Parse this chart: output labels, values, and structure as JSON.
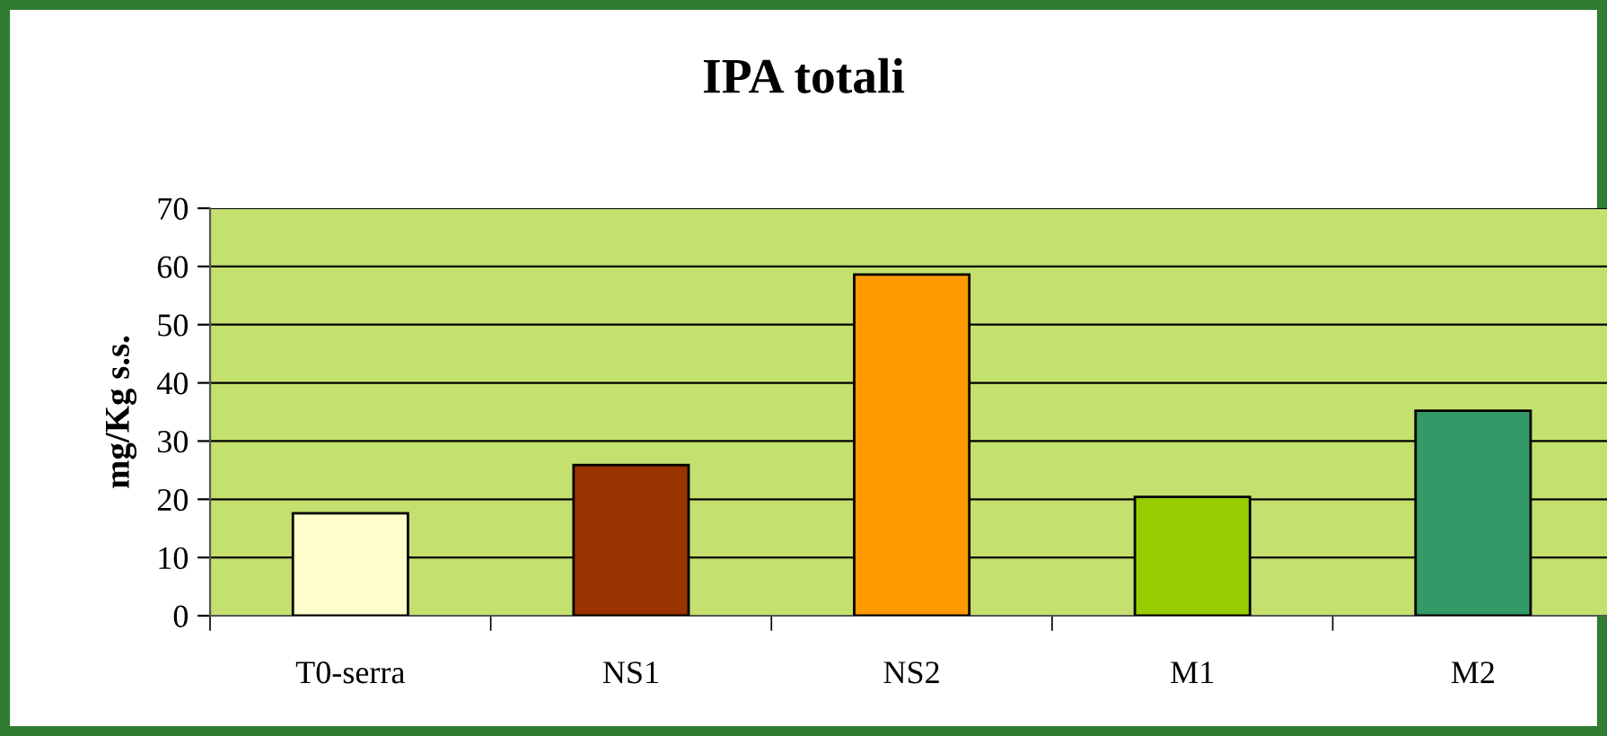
{
  "chart_data": {
    "type": "bar",
    "title": "IPA totali",
    "ylabel": "mg/Kg s.s.",
    "categories": [
      "T0-serra",
      "NS1",
      "NS2",
      "M1",
      "M2"
    ],
    "values": [
      17.6,
      25.9,
      58.6,
      20.4,
      35.2
    ],
    "colors": [
      "#ffffcc",
      "#993300",
      "#ff9900",
      "#99cc00",
      "#339966"
    ],
    "ylim": [
      0,
      70
    ],
    "yticks": [
      0,
      10,
      20,
      30,
      40,
      50,
      60,
      70
    ],
    "grid": "y",
    "legend": false
  }
}
